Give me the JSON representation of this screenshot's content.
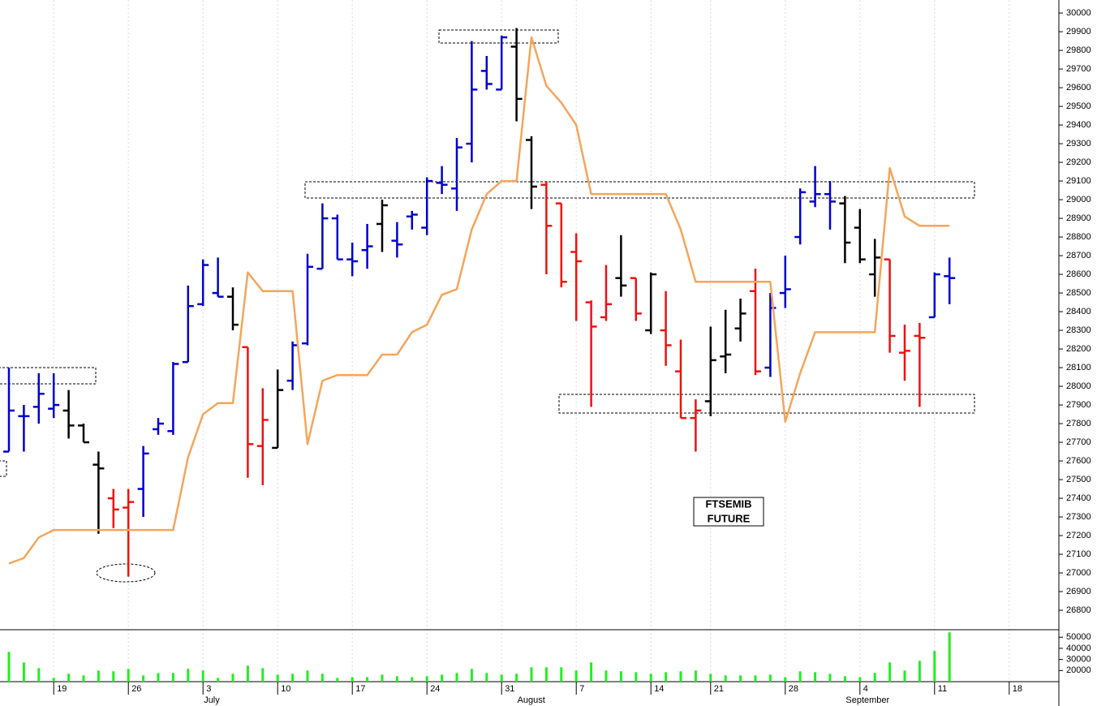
{
  "chart_data": [
    {
      "type": "ohlc",
      "categories": [
        null,
        null,
        null,
        "19",
        null,
        null,
        null,
        null,
        "26",
        null,
        null,
        null,
        null,
        "3",
        null,
        null,
        null,
        null,
        "10",
        null,
        null,
        null,
        null,
        "17",
        null,
        null,
        null,
        null,
        "24",
        null,
        null,
        null,
        null,
        "31",
        null,
        null,
        null,
        null,
        "7",
        null,
        null,
        null,
        null,
        "14",
        null,
        null,
        null,
        "21",
        null,
        null,
        null,
        null,
        "28",
        null,
        null,
        null,
        null,
        "4",
        null,
        null,
        null,
        null,
        "11",
        null,
        null,
        null,
        null,
        "18"
      ],
      "month_labels": [
        "July",
        "August",
        "September"
      ],
      "open": [
        27650,
        27840,
        27890,
        27880,
        27870,
        27790,
        27580,
        27400,
        27350,
        27450,
        27770,
        27760,
        28130,
        28440,
        28500,
        28480,
        28210,
        27680,
        27670,
        28030,
        28230,
        28630,
        28900,
        28680,
        28730,
        28870,
        28780,
        28910,
        28850,
        29090,
        29060,
        29300,
        29690,
        29590,
        29820,
        29320,
        29080,
        28980,
        28720,
        28450,
        28370,
        28580,
        28580,
        28300,
        28300,
        28080,
        27830,
        27920,
        28160,
        28310,
        28510,
        28100,
        28500,
        28800,
        28990,
        29030,
        28980,
        28850,
        28600,
        28680,
        28180,
        28270,
        28370,
        28590,
        null,
        null,
        null,
        null
      ],
      "high": [
        28100,
        27900,
        28070,
        28070,
        27980,
        27800,
        27650,
        27450,
        27450,
        27680,
        27830,
        28130,
        28540,
        28680,
        28690,
        28530,
        28210,
        27990,
        28090,
        28240,
        28710,
        28980,
        28920,
        28770,
        28870,
        29000,
        28880,
        28940,
        29120,
        29180,
        29330,
        29850,
        29770,
        29880,
        29920,
        29340,
        29100,
        28980,
        28820,
        28460,
        28650,
        28810,
        28580,
        28610,
        28510,
        28250,
        27930,
        28320,
        28410,
        28470,
        28630,
        28500,
        28700,
        29060,
        29180,
        29100,
        29020,
        28950,
        28790,
        28680,
        28330,
        28340,
        28610,
        28690,
        null,
        null,
        null,
        null
      ],
      "low": [
        27650,
        27650,
        27800,
        27830,
        27720,
        27700,
        27210,
        27240,
        26980,
        27300,
        27740,
        27740,
        28130,
        28430,
        28480,
        28300,
        27510,
        27470,
        27670,
        27980,
        28220,
        28630,
        28680,
        28590,
        28630,
        28720,
        28690,
        28840,
        28810,
        29030,
        28940,
        29200,
        29590,
        29590,
        29420,
        28950,
        28600,
        28530,
        28350,
        27890,
        28350,
        28480,
        28350,
        28280,
        28110,
        27830,
        27650,
        27840,
        28070,
        28240,
        28060,
        28050,
        28420,
        28760,
        28960,
        28840,
        28660,
        28660,
        28480,
        28180,
        28030,
        27890,
        28370,
        28440,
        null,
        null,
        null,
        null
      ],
      "close": [
        27870,
        27840,
        27960,
        27900,
        27790,
        27700,
        27560,
        27340,
        27380,
        27640,
        27800,
        28120,
        28430,
        28650,
        28480,
        28330,
        27690,
        27820,
        27980,
        28220,
        28640,
        28900,
        28680,
        28670,
        28750,
        28970,
        28760,
        28920,
        29100,
        29080,
        29280,
        29590,
        29620,
        29870,
        29540,
        29070,
        28860,
        28560,
        28670,
        28320,
        28440,
        28540,
        28390,
        28600,
        28220,
        27830,
        27870,
        28140,
        28170,
        28390,
        28080,
        28420,
        28520,
        29040,
        29030,
        28990,
        28770,
        28680,
        28690,
        28270,
        28190,
        28260,
        28600,
        28580,
        null,
        null,
        null,
        null
      ],
      "colors": [
        "#0000cc",
        "#0000cc",
        "#0000cc",
        "#0000cc",
        "#000000",
        "#000000",
        "#000000",
        "#ee1111",
        "#ee1111",
        "#0000cc",
        "#0000cc",
        "#0000cc",
        "#0000cc",
        "#0000cc",
        "#0000cc",
        "#000000",
        "#ee1111",
        "#ee1111",
        "#000000",
        "#0000cc",
        "#0000cc",
        "#0000cc",
        "#0000cc",
        "#0000cc",
        "#0000cc",
        "#000000",
        "#0000cc",
        "#0000cc",
        "#0000cc",
        "#0000cc",
        "#0000cc",
        "#0000cc",
        "#0000cc",
        "#0000cc",
        "#000000",
        "#000000",
        "#ee1111",
        "#ee1111",
        "#ee1111",
        "#ee1111",
        "#ee1111",
        "#000000",
        "#ee1111",
        "#000000",
        "#ee1111",
        "#ee1111",
        "#ee1111",
        "#000000",
        "#000000",
        "#000000",
        "#ee1111",
        "#0000cc",
        "#0000cc",
        "#0000cc",
        "#0000cc",
        "#0000cc",
        "#000000",
        "#000000",
        "#000000",
        "#ee1111",
        "#ee1111",
        "#ee1111",
        "#0000cc",
        "#0000cc",
        null,
        null,
        null,
        null
      ],
      "overlay": {
        "type": "line",
        "color": "#f5a55a",
        "values": [
          27050,
          27080,
          27190,
          27230,
          27230,
          27230,
          27230,
          27230,
          27230,
          27230,
          27230,
          27230,
          27620,
          27850,
          27910,
          27910,
          28610,
          28510,
          28510,
          28510,
          27690,
          28030,
          28060,
          28060,
          28060,
          28170,
          28170,
          28290,
          28330,
          28490,
          28520,
          28840,
          29030,
          29100,
          29100,
          29870,
          29610,
          29520,
          29400,
          29030,
          29030,
          29030,
          29030,
          29030,
          29030,
          28840,
          28560,
          28560,
          28560,
          28560,
          28560,
          28560,
          27810,
          28070,
          28290,
          28290,
          28290,
          28290,
          28290,
          29170,
          28910,
          28860,
          28860,
          28860,
          null,
          null,
          null,
          null
        ]
      },
      "annotation": [
        "FTSEMIB",
        "FUTURE"
      ],
      "ylim": [
        26700,
        30070
      ],
      "yticks": [
        26800,
        26900,
        27000,
        27100,
        27200,
        27300,
        27400,
        27500,
        27600,
        27700,
        27800,
        27900,
        28000,
        28100,
        28200,
        28300,
        28400,
        28500,
        28600,
        28700,
        28800,
        28900,
        29000,
        29100,
        29200,
        29300,
        29400,
        29500,
        29600,
        29700,
        29800,
        29900,
        30000
      ]
    },
    {
      "type": "bar",
      "color": "#22ee22",
      "values": [
        36800,
        27300,
        22200,
        13400,
        17100,
        15600,
        20000,
        19300,
        21500,
        15600,
        17800,
        17800,
        21500,
        20000,
        13400,
        17100,
        24400,
        22200,
        16300,
        17100,
        20000,
        17100,
        13400,
        14100,
        14100,
        16300,
        14900,
        14100,
        14900,
        16300,
        17800,
        21500,
        17800,
        16300,
        17100,
        22900,
        22900,
        22900,
        20000,
        27300,
        20000,
        19300,
        18500,
        17100,
        18500,
        19300,
        20000,
        17100,
        15600,
        15600,
        15600,
        16300,
        14100,
        19300,
        18500,
        17100,
        14900,
        14100,
        17800,
        27300,
        20000,
        28800,
        37600,
        54400,
        null,
        null,
        null,
        null
      ],
      "ylim": [
        10000,
        56000
      ],
      "yticks": [
        20000,
        30000,
        40000,
        50000
      ]
    }
  ]
}
